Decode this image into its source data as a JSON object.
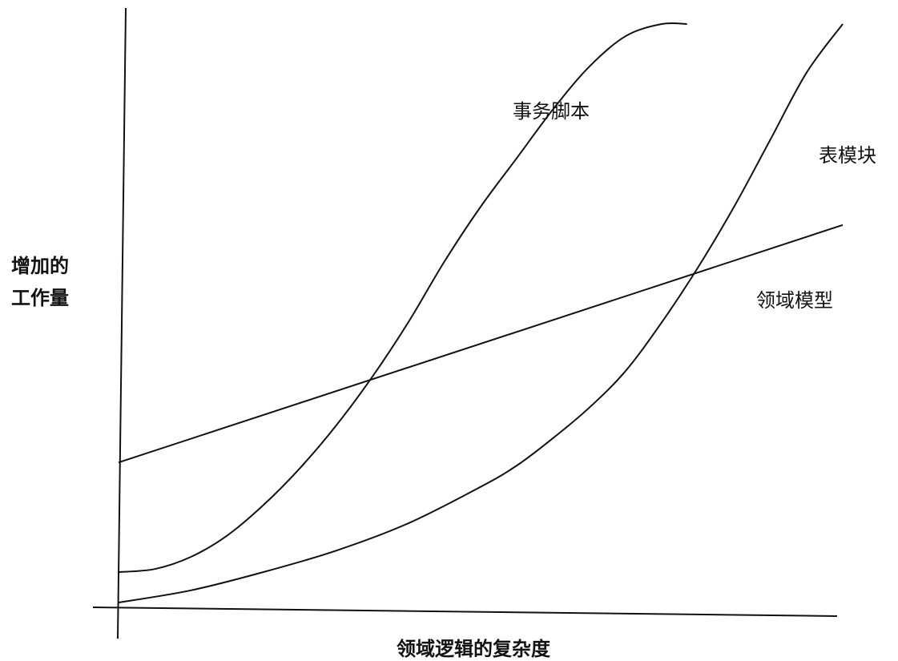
{
  "chart_data": {
    "type": "line",
    "title": "",
    "ylabel_lines": [
      "增加的",
      "工作量"
    ],
    "xlabel": "领域逻辑的复杂度",
    "xlim": [
      0,
      100
    ],
    "ylim": [
      0,
      100
    ],
    "grid": false,
    "legend": "none",
    "series": [
      {
        "name": "事务脚本",
        "x": [
          0,
          5,
          10,
          15,
          20,
          25,
          30,
          35,
          40,
          45,
          50,
          55,
          60,
          65,
          70,
          75,
          78.5
        ],
        "y": [
          10,
          10.5,
          12.5,
          16,
          21,
          27,
          34,
          42,
          51,
          61,
          70,
          78,
          86,
          93,
          98,
          100,
          100
        ]
      },
      {
        "name": "表模块",
        "x": [
          0,
          10,
          20,
          30,
          40,
          50,
          55,
          60,
          65,
          70,
          75,
          80,
          85,
          90,
          95,
          100
        ],
        "y": [
          5,
          7,
          10,
          13.5,
          18,
          24,
          27.5,
          32,
          37,
          43,
          51,
          60,
          70,
          81,
          92,
          100
        ]
      },
      {
        "name": "领域模型",
        "x": [
          0,
          100
        ],
        "y": [
          28,
          67
        ]
      }
    ]
  }
}
